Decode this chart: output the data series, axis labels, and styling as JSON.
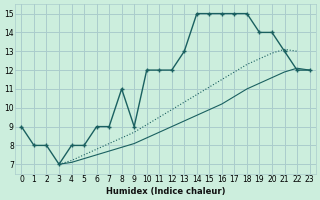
{
  "xlabel": "Humidex (Indice chaleur)",
  "bg_color": "#cceedd",
  "grid_color": "#aacccc",
  "line_color": "#1a6060",
  "xlim": [
    -0.5,
    23.5
  ],
  "ylim": [
    6.5,
    15.5
  ],
  "xticks": [
    0,
    1,
    2,
    3,
    4,
    5,
    6,
    7,
    8,
    9,
    10,
    11,
    12,
    13,
    14,
    15,
    16,
    17,
    18,
    19,
    20,
    21,
    22,
    23
  ],
  "yticks": [
    7,
    8,
    9,
    10,
    11,
    12,
    13,
    14,
    15
  ],
  "line1_x": [
    0,
    1,
    2,
    3,
    4,
    5,
    6,
    7,
    8,
    9,
    10,
    11,
    12,
    13,
    14,
    15,
    16,
    17,
    18,
    19,
    20,
    21,
    22,
    23
  ],
  "line1_y": [
    9,
    8,
    8,
    7,
    8,
    8,
    9,
    9,
    11,
    9,
    12,
    12,
    12,
    13,
    15,
    15,
    15,
    15,
    15,
    14,
    14,
    13,
    12,
    12
  ],
  "line2_x": [
    3,
    4,
    5,
    6,
    7,
    8,
    9,
    10,
    11,
    12,
    13,
    14,
    15,
    16,
    17,
    18,
    19,
    20,
    21,
    22
  ],
  "line2_y": [
    7.0,
    7.2,
    7.5,
    7.8,
    8.1,
    8.4,
    8.7,
    9.1,
    9.5,
    9.9,
    10.3,
    10.7,
    11.1,
    11.5,
    11.9,
    12.3,
    12.6,
    12.9,
    13.1,
    13.0
  ],
  "line3_x": [
    3,
    4,
    5,
    6,
    7,
    8,
    9,
    10,
    11,
    12,
    13,
    14,
    15,
    16,
    17,
    18,
    19,
    20,
    21,
    22,
    23
  ],
  "line3_y": [
    7.0,
    7.1,
    7.3,
    7.5,
    7.7,
    7.9,
    8.1,
    8.4,
    8.7,
    9.0,
    9.3,
    9.6,
    9.9,
    10.2,
    10.6,
    11.0,
    11.3,
    11.6,
    11.9,
    12.1,
    12.0
  ]
}
